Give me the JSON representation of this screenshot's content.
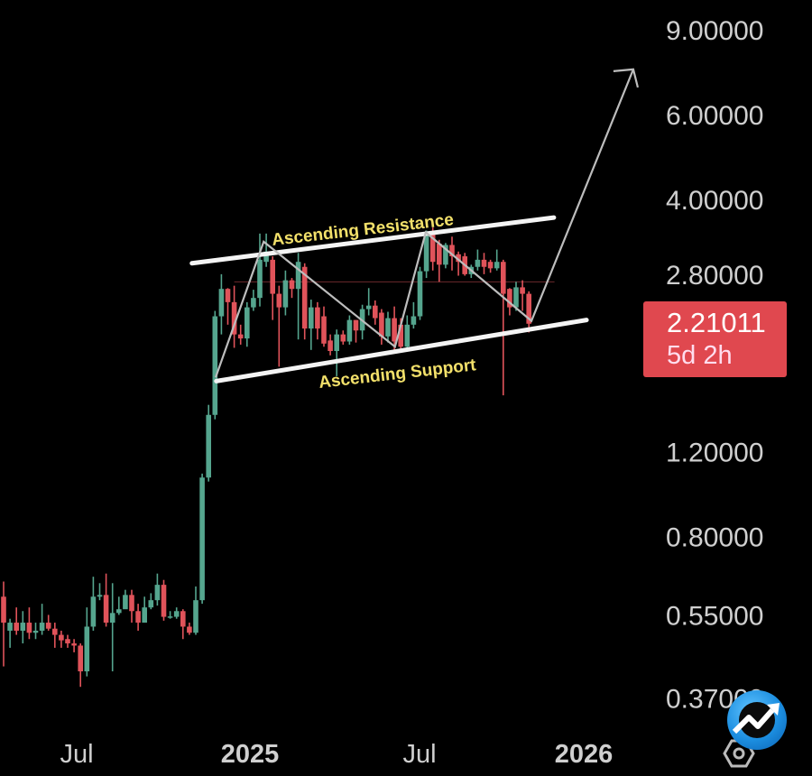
{
  "chart_data": {
    "type": "candlestick",
    "title": "",
    "y_scale": "log",
    "y_ticks": [
      {
        "value": 9.0,
        "label": "9.00000"
      },
      {
        "value": 6.0,
        "label": "6.00000"
      },
      {
        "value": 4.0,
        "label": "4.00000"
      },
      {
        "value": 2.8,
        "label": "2.80000"
      },
      {
        "value": 1.2,
        "label": "1.20000"
      },
      {
        "value": 0.8,
        "label": "0.80000"
      },
      {
        "value": 0.55,
        "label": "0.55000"
      },
      {
        "value": 0.37,
        "label": "0.37000"
      }
    ],
    "x_ticks": [
      "Jul",
      "2025",
      "Jul",
      "2026"
    ],
    "interval": "weekly",
    "colors": {
      "up": "#55a58e",
      "down": "#e0535a",
      "background": "#000000"
    },
    "candles_ohlc": [
      [
        0.6,
        0.645,
        0.43,
        0.53
      ],
      [
        0.51,
        0.54,
        0.47,
        0.53
      ],
      [
        0.53,
        0.57,
        0.5,
        0.51
      ],
      [
        0.51,
        0.56,
        0.48,
        0.53
      ],
      [
        0.53,
        0.57,
        0.49,
        0.505
      ],
      [
        0.505,
        0.53,
        0.49,
        0.51
      ],
      [
        0.51,
        0.58,
        0.5,
        0.53
      ],
      [
        0.53,
        0.55,
        0.51,
        0.515
      ],
      [
        0.515,
        0.53,
        0.47,
        0.5
      ],
      [
        0.5,
        0.51,
        0.47,
        0.487
      ],
      [
        0.49,
        0.5,
        0.47,
        0.48
      ],
      [
        0.48,
        0.49,
        0.46,
        0.475
      ],
      [
        0.475,
        0.48,
        0.39,
        0.42
      ],
      [
        0.42,
        0.57,
        0.41,
        0.52
      ],
      [
        0.52,
        0.66,
        0.51,
        0.6
      ],
      [
        0.6,
        0.64,
        0.59,
        0.605
      ],
      [
        0.605,
        0.67,
        0.52,
        0.53
      ],
      [
        0.53,
        0.64,
        0.42,
        0.555
      ],
      [
        0.555,
        0.6,
        0.55,
        0.565
      ],
      [
        0.565,
        0.62,
        0.57,
        0.605
      ],
      [
        0.605,
        0.62,
        0.53,
        0.56
      ],
      [
        0.56,
        0.58,
        0.51,
        0.53
      ],
      [
        0.53,
        0.6,
        0.53,
        0.57
      ],
      [
        0.57,
        0.61,
        0.565,
        0.59
      ],
      [
        0.59,
        0.67,
        0.575,
        0.635
      ],
      [
        0.635,
        0.65,
        0.535,
        0.545
      ],
      [
        0.545,
        0.56,
        0.54,
        0.546
      ],
      [
        0.545,
        0.57,
        0.54,
        0.56
      ],
      [
        0.56,
        0.565,
        0.49,
        0.52
      ],
      [
        0.52,
        0.53,
        0.5,
        0.505
      ],
      [
        0.505,
        0.63,
        0.5,
        0.59
      ],
      [
        0.59,
        1.08,
        0.58,
        1.06
      ],
      [
        1.06,
        1.5,
        1.04,
        1.43
      ],
      [
        1.43,
        2.35,
        1.4,
        2.29
      ],
      [
        2.29,
        2.8,
        2.1,
        2.61
      ],
      [
        2.61,
        2.62,
        2.2,
        2.45
      ],
      [
        2.45,
        2.65,
        1.97,
        2.1
      ],
      [
        2.1,
        2.2,
        2.0,
        2.06
      ],
      [
        2.06,
        2.45,
        1.98,
        2.39
      ],
      [
        2.39,
        2.6,
        2.35,
        2.5
      ],
      [
        2.5,
        3.4,
        2.4,
        3.0
      ],
      [
        2.97,
        3.4,
        2.9,
        3.12
      ],
      [
        3.0,
        3.05,
        2.25,
        2.55
      ],
      [
        2.55,
        2.65,
        1.8,
        2.39
      ],
      [
        2.39,
        2.85,
        2.3,
        2.72
      ],
      [
        2.72,
        2.75,
        2.5,
        2.61
      ],
      [
        2.61,
        3.1,
        2.05,
        2.97
      ],
      [
        2.9,
        2.95,
        2.05,
        2.16
      ],
      [
        2.16,
        2.48,
        1.95,
        2.39
      ],
      [
        2.39,
        2.45,
        2.05,
        2.16
      ],
      [
        2.29,
        2.4,
        1.98,
        2.01
      ],
      [
        2.04,
        2.1,
        1.9,
        1.94
      ],
      [
        1.94,
        2.15,
        1.72,
        2.1
      ],
      [
        2.1,
        2.14,
        2.0,
        2.03
      ],
      [
        2.03,
        2.3,
        2.0,
        2.25
      ],
      [
        2.25,
        2.25,
        2.02,
        2.14
      ],
      [
        2.14,
        2.42,
        2.05,
        2.37
      ],
      [
        2.37,
        2.62,
        2.3,
        2.41
      ],
      [
        2.41,
        2.47,
        2.2,
        2.27
      ],
      [
        2.33,
        2.37,
        2.0,
        2.08
      ],
      [
        2.08,
        2.34,
        2.02,
        2.27
      ],
      [
        2.27,
        2.4,
        1.93,
        2.03
      ],
      [
        2.2,
        2.27,
        1.93,
        1.98
      ],
      [
        1.98,
        2.3,
        1.95,
        2.2
      ],
      [
        2.2,
        2.45,
        2.16,
        2.29
      ],
      [
        2.29,
        2.9,
        2.25,
        2.84
      ],
      [
        2.84,
        3.45,
        2.75,
        3.4
      ],
      [
        3.4,
        3.5,
        2.85,
        2.97
      ],
      [
        3.24,
        3.3,
        2.7,
        2.93
      ],
      [
        2.93,
        3.25,
        2.88,
        3.22
      ],
      [
        3.22,
        3.35,
        2.85,
        3.05
      ],
      [
        3.08,
        3.12,
        2.78,
        2.97
      ],
      [
        3.05,
        3.1,
        2.78,
        2.8
      ],
      [
        2.8,
        2.93,
        2.75,
        2.9
      ],
      [
        2.9,
        3.15,
        2.85,
        3.0
      ],
      [
        3.0,
        3.1,
        2.8,
        2.9
      ],
      [
        2.97,
        3.0,
        2.82,
        2.88
      ],
      [
        2.88,
        3.15,
        2.85,
        2.97
      ],
      [
        2.97,
        3.0,
        1.57,
        2.55
      ],
      [
        2.61,
        2.62,
        2.3,
        2.39
      ],
      [
        2.39,
        2.7,
        2.35,
        2.63
      ],
      [
        2.63,
        2.72,
        2.35,
        2.55
      ],
      [
        2.55,
        2.58,
        2.12,
        2.21
      ]
    ],
    "annotations": {
      "resistance_label": "Ascending Resistance",
      "support_label": "Ascending Support",
      "resistance_line": [
        [
          29.4,
          2.95
        ],
        [
          85.9,
          3.67
        ]
      ],
      "support_line": [
        [
          33.2,
          1.68
        ],
        [
          91.0,
          2.25
        ]
      ],
      "zigzag_path": [
        [
          33.1,
          1.71
        ],
        [
          40.6,
          3.27
        ],
        [
          61.1,
          1.98
        ],
        [
          65.9,
          3.42
        ],
        [
          82.4,
          2.24
        ],
        [
          98.3,
          7.45
        ]
      ],
      "level_line": [
        [
          36,
          2.7
        ],
        [
          86,
          2.7
        ]
      ]
    },
    "last_price": {
      "value": "2.21011",
      "countdown": "5d 2h",
      "color": "#e0484f"
    }
  },
  "logo": {
    "name": "chart-app-logo"
  }
}
